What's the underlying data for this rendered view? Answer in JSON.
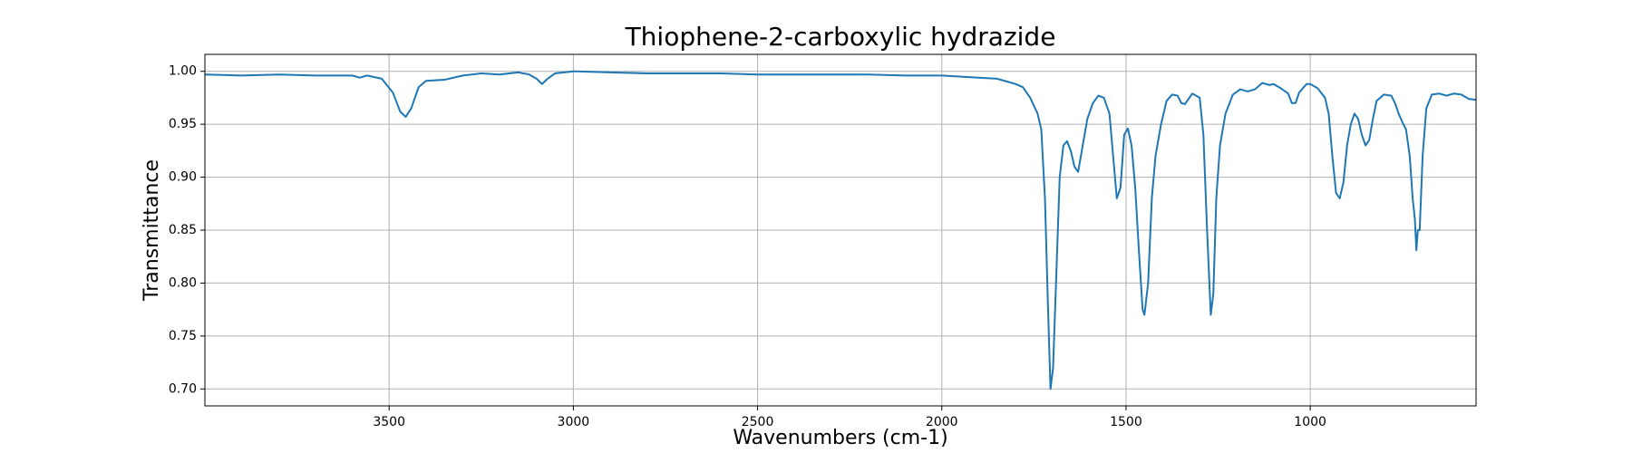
{
  "chart_data": {
    "type": "line",
    "title": "Thiophene-2-carboxylic hydrazide",
    "xlabel": "Wavenumbers (cm-1)",
    "ylabel": "Transmittance",
    "x": [
      4000,
      3900,
      3800,
      3700,
      3600,
      3580,
      3560,
      3520,
      3490,
      3470,
      3455,
      3440,
      3420,
      3400,
      3350,
      3300,
      3250,
      3200,
      3150,
      3120,
      3100,
      3085,
      3070,
      3050,
      3000,
      2900,
      2800,
      2700,
      2600,
      2500,
      2400,
      2300,
      2200,
      2100,
      2000,
      1900,
      1850,
      1800,
      1780,
      1760,
      1740,
      1730,
      1720,
      1712,
      1705,
      1698,
      1690,
      1680,
      1670,
      1660,
      1650,
      1640,
      1630,
      1620,
      1605,
      1590,
      1575,
      1560,
      1545,
      1535,
      1525,
      1515,
      1505,
      1495,
      1485,
      1475,
      1465,
      1455,
      1450,
      1440,
      1430,
      1420,
      1405,
      1390,
      1375,
      1360,
      1350,
      1340,
      1330,
      1320,
      1300,
      1290,
      1280,
      1270,
      1263,
      1255,
      1245,
      1230,
      1210,
      1190,
      1170,
      1150,
      1130,
      1110,
      1100,
      1080,
      1060,
      1050,
      1040,
      1030,
      1010,
      1000,
      980,
      960,
      950,
      940,
      930,
      920,
      910,
      900,
      890,
      880,
      870,
      860,
      850,
      840,
      830,
      820,
      800,
      780,
      770,
      760,
      750,
      740,
      730,
      722,
      716,
      712,
      708,
      703,
      695,
      685,
      670,
      650,
      630,
      610,
      590,
      570,
      550
    ],
    "values": [
      0.997,
      0.996,
      0.997,
      0.996,
      0.996,
      0.994,
      0.996,
      0.993,
      0.98,
      0.962,
      0.957,
      0.965,
      0.985,
      0.991,
      0.992,
      0.996,
      0.998,
      0.997,
      0.999,
      0.997,
      0.993,
      0.988,
      0.993,
      0.998,
      1.0,
      0.999,
      0.998,
      0.998,
      0.998,
      0.997,
      0.997,
      0.997,
      0.997,
      0.996,
      0.996,
      0.994,
      0.993,
      0.988,
      0.985,
      0.975,
      0.96,
      0.945,
      0.88,
      0.78,
      0.7,
      0.72,
      0.8,
      0.9,
      0.93,
      0.934,
      0.925,
      0.91,
      0.905,
      0.925,
      0.955,
      0.97,
      0.977,
      0.975,
      0.96,
      0.92,
      0.88,
      0.89,
      0.94,
      0.946,
      0.93,
      0.89,
      0.83,
      0.775,
      0.77,
      0.8,
      0.88,
      0.92,
      0.95,
      0.972,
      0.978,
      0.977,
      0.97,
      0.969,
      0.974,
      0.979,
      0.975,
      0.94,
      0.85,
      0.77,
      0.79,
      0.88,
      0.93,
      0.96,
      0.978,
      0.983,
      0.981,
      0.983,
      0.989,
      0.987,
      0.988,
      0.984,
      0.979,
      0.97,
      0.97,
      0.98,
      0.988,
      0.988,
      0.984,
      0.975,
      0.96,
      0.92,
      0.885,
      0.88,
      0.895,
      0.93,
      0.95,
      0.96,
      0.955,
      0.94,
      0.93,
      0.935,
      0.955,
      0.972,
      0.978,
      0.977,
      0.97,
      0.96,
      0.952,
      0.945,
      0.92,
      0.88,
      0.86,
      0.831,
      0.85,
      0.85,
      0.92,
      0.965,
      0.978,
      0.979,
      0.977,
      0.979,
      0.978,
      0.974,
      0.973
    ],
    "color": "#1f77b4",
    "xlim": [
      4000,
      550
    ],
    "xticks": [
      3500,
      3000,
      2500,
      2000,
      1500,
      1000
    ],
    "ylim": [
      0.684,
      1.016
    ],
    "yticks": [
      {
        "value": 0.7,
        "label": "0.70"
      },
      {
        "value": 0.75,
        "label": "0.75"
      },
      {
        "value": 0.8,
        "label": "0.80"
      },
      {
        "value": 0.85,
        "label": "0.85"
      },
      {
        "value": 0.9,
        "label": "0.90"
      },
      {
        "value": 0.95,
        "label": "0.95"
      },
      {
        "value": 1.0,
        "label": "1.00"
      }
    ],
    "grid": true
  }
}
